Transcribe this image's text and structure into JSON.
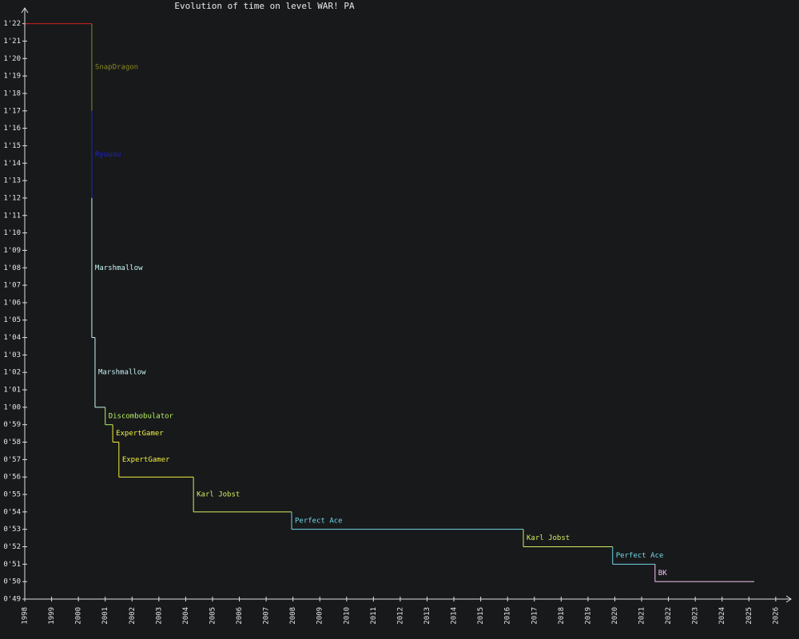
{
  "chart_data": {
    "type": "step",
    "title": "Evolution of time on level WAR! PA",
    "x": [
      1998,
      2000.5,
      2000.5,
      2000.5,
      2000.62,
      2001.0,
      2001.28,
      2001.51,
      2004.29,
      2007.95,
      2016.59,
      2019.92,
      2021.5
    ],
    "x_end": 2025.2,
    "values": [
      82,
      77,
      72,
      64,
      60,
      59,
      58,
      56,
      54,
      53,
      52,
      51,
      50
    ],
    "names": [
      null,
      "SnapDragon",
      "Ryuuou",
      "Marshmallow",
      "Marshmallow",
      "Discombobulator",
      "ExpertGamer",
      "ExpertGamer",
      "Karl Jobst",
      "Perfect Ace",
      "Karl Jobst",
      "Perfect Ace",
      "BK"
    ],
    "colors": [
      "#d02020",
      "#8a8a20",
      "#2020d8",
      "#c8f4f4",
      "#c8f4f4",
      "#b8f060",
      "#f0f040",
      "#f0f040",
      "#d0f060",
      "#70d8e8",
      "#d0f060",
      "#70d8e8",
      "#f4c8f4"
    ],
    "xlim": [
      1998,
      2026.6
    ],
    "xticks": [
      1998,
      1999,
      2000,
      2001,
      2002,
      2003,
      2004,
      2005,
      2006,
      2007,
      2008,
      2009,
      2010,
      2011,
      2012,
      2013,
      2014,
      2015,
      2016,
      2017,
      2018,
      2019,
      2020,
      2021,
      2022,
      2023,
      2024,
      2025,
      2026
    ],
    "ylim": [
      49,
      82.9
    ],
    "yticks": [
      {
        "value": 49,
        "label": "0'49"
      },
      {
        "value": 50,
        "label": "0'50"
      },
      {
        "value": 51,
        "label": "0'51"
      },
      {
        "value": 52,
        "label": "0'52"
      },
      {
        "value": 53,
        "label": "0'53"
      },
      {
        "value": 54,
        "label": "0'54"
      },
      {
        "value": 55,
        "label": "0'55"
      },
      {
        "value": 56,
        "label": "0'56"
      },
      {
        "value": 57,
        "label": "0'57"
      },
      {
        "value": 58,
        "label": "0'58"
      },
      {
        "value": 59,
        "label": "0'59"
      },
      {
        "value": 60,
        "label": "1'00"
      },
      {
        "value": 61,
        "label": "1'01"
      },
      {
        "value": 62,
        "label": "1'02"
      },
      {
        "value": 63,
        "label": "1'03"
      },
      {
        "value": 64,
        "label": "1'04"
      },
      {
        "value": 65,
        "label": "1'05"
      },
      {
        "value": 66,
        "label": "1'06"
      },
      {
        "value": 67,
        "label": "1'07"
      },
      {
        "value": 68,
        "label": "1'08"
      },
      {
        "value": 69,
        "label": "1'09"
      },
      {
        "value": 70,
        "label": "1'10"
      },
      {
        "value": 71,
        "label": "1'11"
      },
      {
        "value": 72,
        "label": "1'12"
      },
      {
        "value": 73,
        "label": "1'13"
      },
      {
        "value": 74,
        "label": "1'14"
      },
      {
        "value": 75,
        "label": "1'15"
      },
      {
        "value": 76,
        "label": "1'16"
      },
      {
        "value": 77,
        "label": "1'17"
      },
      {
        "value": 78,
        "label": "1'18"
      },
      {
        "value": 79,
        "label": "1'19"
      },
      {
        "value": 80,
        "label": "1'20"
      },
      {
        "value": 81,
        "label": "1'21"
      },
      {
        "value": 82,
        "label": "1'22"
      }
    ]
  }
}
